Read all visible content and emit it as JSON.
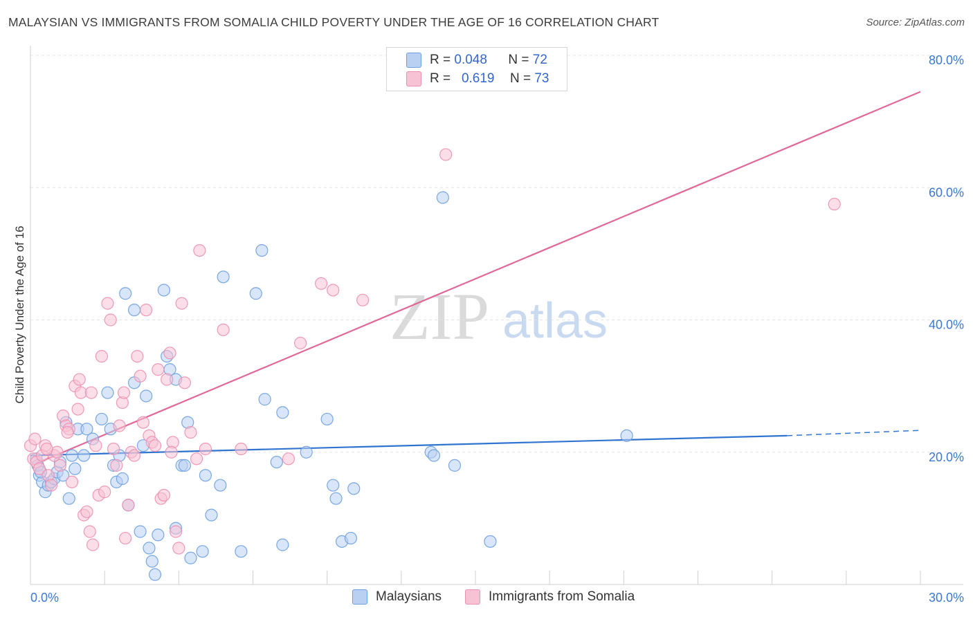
{
  "title": "MALAYSIAN VS IMMIGRANTS FROM SOMALIA CHILD POVERTY UNDER THE AGE OF 16 CORRELATION CHART",
  "source": "Source: ZipAtlas.com",
  "watermark": {
    "zip": "ZIP",
    "atlas": "atlas"
  },
  "legend": {
    "series1": {
      "r_label": "R =",
      "r_value": "0.048",
      "n_label": "N =",
      "n_value": "72"
    },
    "series2": {
      "r_label": "R =",
      "r_value": "0.619",
      "n_label": "N =",
      "n_value": "73"
    }
  },
  "bottom_legend": {
    "series1": "Malaysians",
    "series2": "Immigrants from Somalia"
  },
  "chart_data": {
    "type": "scatter",
    "title": "MALAYSIAN VS IMMIGRANTS FROM SOMALIA CHILD POVERTY UNDER THE AGE OF 16 CORRELATION CHART",
    "xlabel": "",
    "ylabel": "Child Poverty Under the Age of 16",
    "xlim": [
      0,
      30
    ],
    "ylim": [
      0,
      80
    ],
    "x_tick_labels": [
      "0.0%",
      "30.0%"
    ],
    "y_ticks": [
      20,
      40,
      60,
      80
    ],
    "y_tick_labels": [
      "20.0%",
      "40.0%",
      "60.0%",
      "80.0%"
    ],
    "series": [
      {
        "name": "Malaysians",
        "color": "#6a9fe0",
        "fill": "#b9d0f2",
        "line_color": "#2f74d0",
        "trend": {
          "x0": 0,
          "y0": 19.5,
          "x1": 25.5,
          "y1": 22.5,
          "dash_to_x": 30,
          "dash_to_y": 23.3
        },
        "points": [
          [
            0.2,
            19.0
          ],
          [
            0.3,
            16.5
          ],
          [
            0.4,
            15.5
          ],
          [
            0.5,
            14.0
          ],
          [
            0.6,
            15.0
          ],
          [
            0.7,
            15.5
          ],
          [
            0.8,
            16.0
          ],
          [
            0.9,
            17.0
          ],
          [
            1.0,
            18.5
          ],
          [
            1.1,
            16.5
          ],
          [
            1.2,
            24.5
          ],
          [
            1.3,
            13.0
          ],
          [
            1.4,
            19.5
          ],
          [
            1.5,
            17.5
          ],
          [
            1.6,
            23.5
          ],
          [
            1.8,
            19.5
          ],
          [
            1.9,
            23.5
          ],
          [
            2.1,
            22.0
          ],
          [
            2.4,
            25.0
          ],
          [
            2.6,
            29.0
          ],
          [
            2.7,
            23.5
          ],
          [
            2.8,
            18.0
          ],
          [
            2.9,
            15.5
          ],
          [
            3.0,
            19.5
          ],
          [
            3.1,
            16.0
          ],
          [
            3.2,
            44.0
          ],
          [
            3.3,
            12.0
          ],
          [
            3.5,
            41.5
          ],
          [
            3.5,
            30.5
          ],
          [
            3.7,
            8.0
          ],
          [
            3.8,
            21.0
          ],
          [
            3.9,
            28.5
          ],
          [
            4.0,
            5.5
          ],
          [
            4.1,
            3.5
          ],
          [
            4.2,
            1.5
          ],
          [
            4.3,
            7.5
          ],
          [
            4.5,
            44.5
          ],
          [
            4.6,
            34.5
          ],
          [
            4.7,
            32.5
          ],
          [
            4.9,
            31.0
          ],
          [
            4.9,
            8.5
          ],
          [
            5.1,
            18.0
          ],
          [
            5.2,
            18.0
          ],
          [
            5.3,
            24.5
          ],
          [
            5.4,
            4.0
          ],
          [
            5.8,
            5.0
          ],
          [
            5.9,
            16.5
          ],
          [
            6.1,
            10.5
          ],
          [
            6.4,
            15.0
          ],
          [
            6.5,
            46.5
          ],
          [
            7.1,
            5.0
          ],
          [
            7.6,
            44.0
          ],
          [
            7.8,
            50.5
          ],
          [
            7.9,
            28.0
          ],
          [
            8.3,
            18.5
          ],
          [
            8.5,
            26.0
          ],
          [
            8.5,
            6.0
          ],
          [
            9.3,
            20.0
          ],
          [
            10.0,
            25.0
          ],
          [
            10.2,
            15.0
          ],
          [
            10.3,
            13.0
          ],
          [
            10.5,
            6.5
          ],
          [
            10.8,
            7.0
          ],
          [
            10.9,
            14.5
          ],
          [
            13.9,
            58.5
          ],
          [
            13.5,
            20.0
          ],
          [
            13.6,
            19.5
          ],
          [
            14.3,
            18.0
          ],
          [
            15.5,
            6.5
          ],
          [
            20.1,
            22.5
          ],
          [
            0.25,
            18.0
          ],
          [
            0.35,
            17.0
          ]
        ]
      },
      {
        "name": "Immigrants from Somalia",
        "color": "#ec8fb0",
        "fill": "#f7c3d4",
        "line_color": "#e0689a",
        "trend": {
          "x0": 0.3,
          "y0": 18.5,
          "x1": 30,
          "y1": 74.5
        },
        "points": [
          [
            0.0,
            21.0
          ],
          [
            0.1,
            19.0
          ],
          [
            0.2,
            18.5
          ],
          [
            0.3,
            17.5
          ],
          [
            0.4,
            19.5
          ],
          [
            0.5,
            21.0
          ],
          [
            0.6,
            16.5
          ],
          [
            0.7,
            15.0
          ],
          [
            0.8,
            19.5
          ],
          [
            0.9,
            20.0
          ],
          [
            1.0,
            18.0
          ],
          [
            1.1,
            25.5
          ],
          [
            1.2,
            24.0
          ],
          [
            1.3,
            23.5
          ],
          [
            1.4,
            15.5
          ],
          [
            1.5,
            30.0
          ],
          [
            1.6,
            26.5
          ],
          [
            1.7,
            29.0
          ],
          [
            1.8,
            10.5
          ],
          [
            1.9,
            11.0
          ],
          [
            2.0,
            8.0
          ],
          [
            2.1,
            6.0
          ],
          [
            2.2,
            21.0
          ],
          [
            2.3,
            13.5
          ],
          [
            2.4,
            34.5
          ],
          [
            2.5,
            14.0
          ],
          [
            2.6,
            42.5
          ],
          [
            2.7,
            40.0
          ],
          [
            2.8,
            20.5
          ],
          [
            2.9,
            18.0
          ],
          [
            3.0,
            24.0
          ],
          [
            3.1,
            27.5
          ],
          [
            3.2,
            7.0
          ],
          [
            3.3,
            12.0
          ],
          [
            3.4,
            20.0
          ],
          [
            3.5,
            19.5
          ],
          [
            3.6,
            34.5
          ],
          [
            3.7,
            31.5
          ],
          [
            3.8,
            24.5
          ],
          [
            3.9,
            41.5
          ],
          [
            4.0,
            22.5
          ],
          [
            4.1,
            21.5
          ],
          [
            4.2,
            21.0
          ],
          [
            4.3,
            32.5
          ],
          [
            4.4,
            13.0
          ],
          [
            4.5,
            13.5
          ],
          [
            4.6,
            31.0
          ],
          [
            4.7,
            35.0
          ],
          [
            4.8,
            21.5
          ],
          [
            4.9,
            8.0
          ],
          [
            5.0,
            5.5
          ],
          [
            5.1,
            42.5
          ],
          [
            5.2,
            30.5
          ],
          [
            5.4,
            23.0
          ],
          [
            5.6,
            19.0
          ],
          [
            5.7,
            50.5
          ],
          [
            5.9,
            20.5
          ],
          [
            6.5,
            38.5
          ],
          [
            7.1,
            20.5
          ],
          [
            8.7,
            19.0
          ],
          [
            9.1,
            36.5
          ],
          [
            9.8,
            45.5
          ],
          [
            10.2,
            44.5
          ],
          [
            11.2,
            43.0
          ],
          [
            14.0,
            65.0
          ],
          [
            27.1,
            57.5
          ],
          [
            0.15,
            22.0
          ],
          [
            0.55,
            20.5
          ],
          [
            1.25,
            23.0
          ],
          [
            2.05,
            29.0
          ],
          [
            3.15,
            29.0
          ],
          [
            4.75,
            20.0
          ],
          [
            1.65,
            31.0
          ]
        ]
      }
    ]
  }
}
